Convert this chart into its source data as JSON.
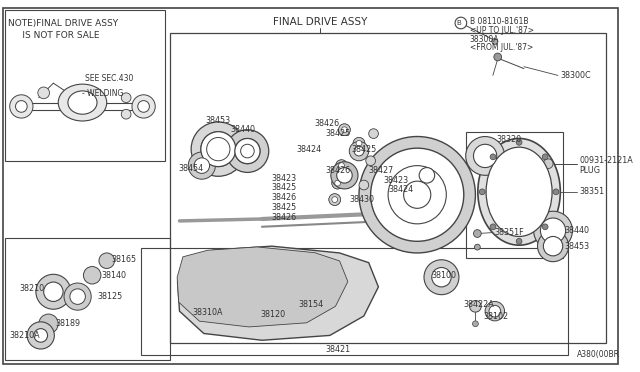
{
  "bg_color": "#ffffff",
  "line_color": "#444444",
  "text_color": "#333333",
  "fig_label": "A380(00BR",
  "title": "FINAL DRIVE ASSY",
  "note_line1": "NOTE)FINAL DRIVE ASSY",
  "note_line2": "     IS NOT FOR SALE",
  "see_sec": "SEE SEC.430",
  "welding_text": "WELDING",
  "bolt_ref": "B 08110-8161B",
  "bolt_line2": "<UP TO JUL.'87>",
  "bolt_line3": "38300A",
  "bolt_line4": "<FROM JUL.'87>",
  "plug_label": "00931-2121A",
  "plug_label2": "PLUG",
  "label_38300C": "38300C",
  "label_38320": "38320",
  "label_38351": "38351",
  "label_38351F": "38351F",
  "label_38453_top": "38453",
  "label_38440_top": "38440",
  "label_38454": "38454",
  "label_38426a": "38426",
  "label_38425a": "38425",
  "label_38424": "38424",
  "label_38425b": "38425",
  "label_38426b": "38426",
  "label_38423a": "38423",
  "label_38427": "38427",
  "label_38425c": "38425",
  "label_38423b": "38423",
  "label_38426c": "38426",
  "label_38424b": "38424",
  "label_38425d": "38425",
  "label_38430": "38430",
  "label_38426d": "38426",
  "label_38440r": "38440",
  "label_38453r": "38453",
  "label_38165": "38165",
  "label_38140": "38140",
  "label_38210": "38210",
  "label_38125": "38125",
  "label_38189": "38189",
  "label_38210A": "38210A",
  "label_38310A": "38310A",
  "label_38120": "38120",
  "label_38154": "38154",
  "label_38100": "38100",
  "label_38422A": "38422A",
  "label_38102": "38102",
  "label_38421": "38421"
}
